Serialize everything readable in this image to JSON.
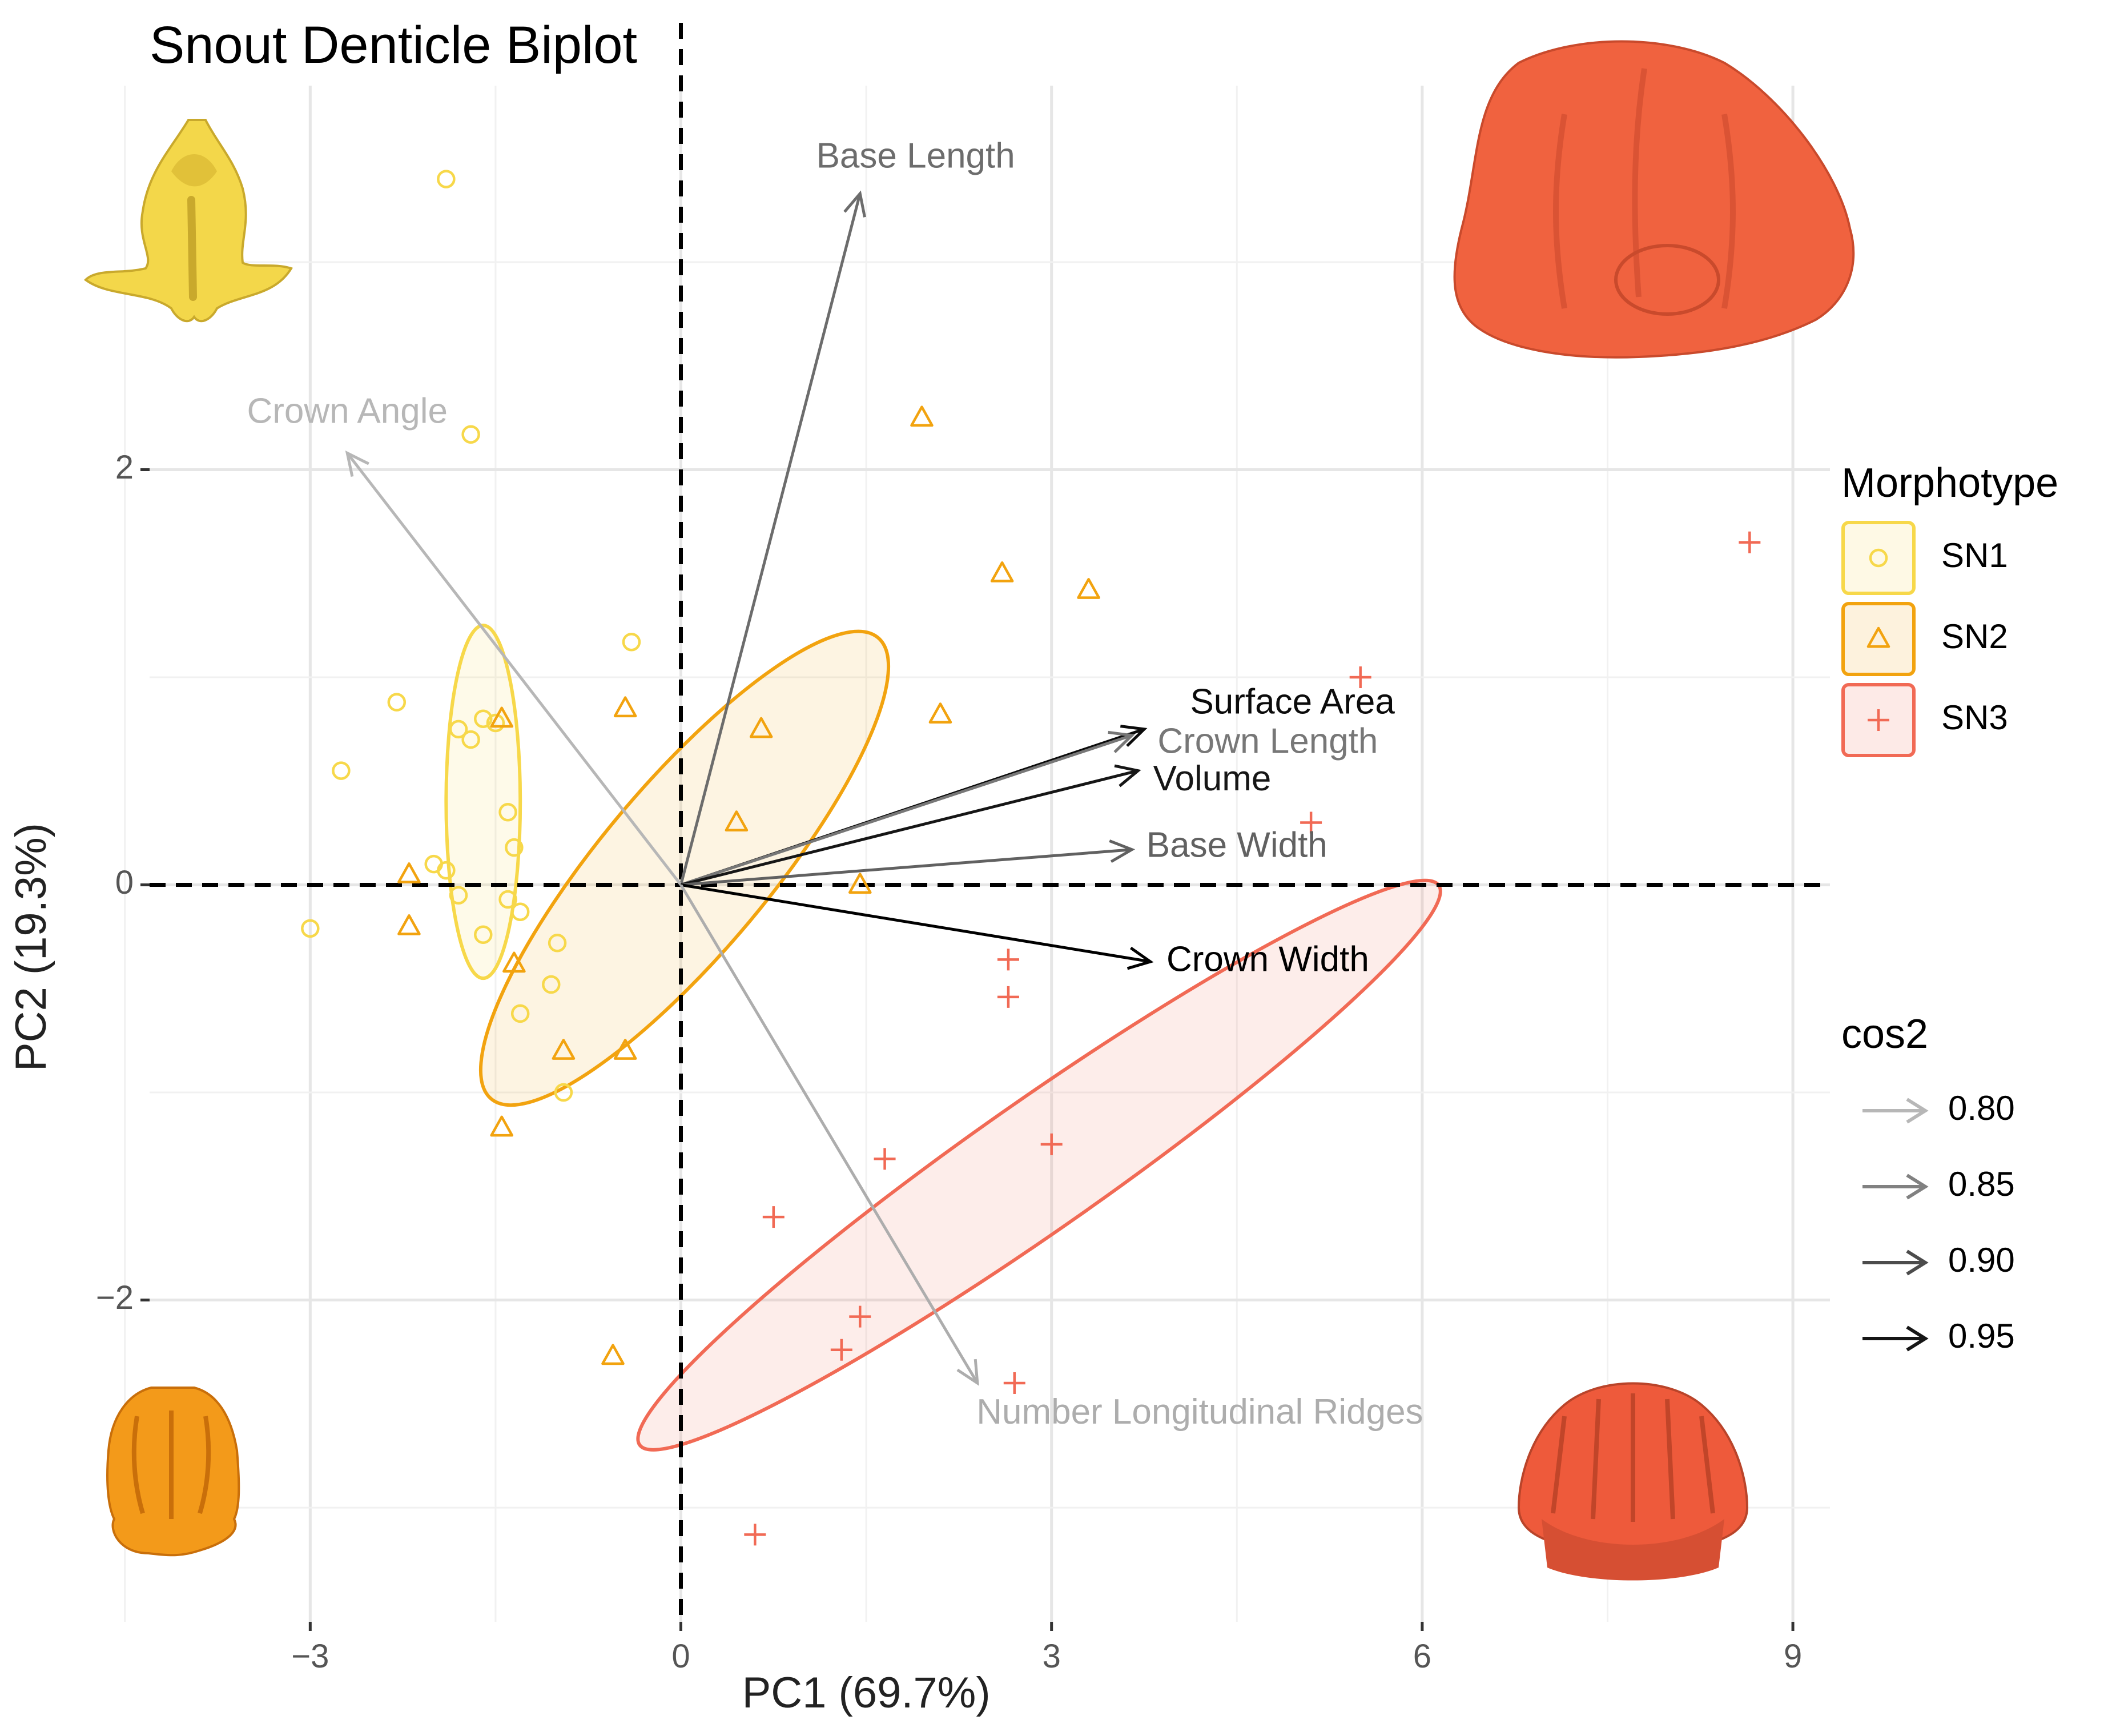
{
  "chart_data": {
    "type": "scatter",
    "title": "Snout Denticle Biplot",
    "xlabel": "PC1 (69.7%)",
    "ylabel": "PC2 (19.3%)",
    "xlim": [
      -4.3,
      9.3
    ],
    "ylim": [
      -3.55,
      3.85
    ],
    "xticks": [
      -3,
      0,
      3,
      6,
      9
    ],
    "yticks": [
      -2,
      0,
      2
    ],
    "xtick_labels": [
      "−3",
      "0",
      "3",
      "6",
      "9"
    ],
    "ytick_labels": [
      "−2",
      "0",
      "2"
    ],
    "grid": true,
    "legend": {
      "title": "Morphotype",
      "position": "right",
      "entries": [
        {
          "label": "SN1",
          "marker": "circle",
          "color": "#F7D84A"
        },
        {
          "label": "SN2",
          "marker": "triangle",
          "color": "#F2A30F"
        },
        {
          "label": "SN3",
          "marker": "plus",
          "color": "#F16A55"
        }
      ]
    },
    "cos2_legend": {
      "title": "cos2",
      "entries": [
        {
          "label": "0.80",
          "value": 0.8
        },
        {
          "label": "0.85",
          "value": 0.85
        },
        {
          "label": "0.90",
          "value": 0.9
        },
        {
          "label": "0.95",
          "value": 0.95
        }
      ]
    },
    "series": [
      {
        "name": "SN1",
        "marker": "circle",
        "color": "#F7D84A",
        "points": [
          [
            -1.9,
            3.4
          ],
          [
            -1.7,
            2.17
          ],
          [
            -0.4,
            1.17
          ],
          [
            -2.3,
            0.88
          ],
          [
            -2.75,
            0.55
          ],
          [
            -1.6,
            0.8
          ],
          [
            -1.5,
            0.78
          ],
          [
            -1.8,
            0.75
          ],
          [
            -1.7,
            0.7
          ],
          [
            -1.4,
            0.35
          ],
          [
            -1.35,
            0.18
          ],
          [
            -2.0,
            0.1
          ],
          [
            -1.9,
            0.07
          ],
          [
            -1.8,
            -0.05
          ],
          [
            -1.4,
            -0.07
          ],
          [
            -1.3,
            -0.13
          ],
          [
            -1.6,
            -0.24
          ],
          [
            -3.0,
            -0.21
          ],
          [
            -1.0,
            -0.28
          ],
          [
            -1.05,
            -0.48
          ],
          [
            -1.3,
            -0.62
          ],
          [
            -0.95,
            -1.0
          ]
        ]
      },
      {
        "name": "SN2",
        "marker": "triangle",
        "color": "#F2A30F",
        "points": [
          [
            1.95,
            2.25
          ],
          [
            2.6,
            1.5
          ],
          [
            3.3,
            1.42
          ],
          [
            -0.45,
            0.85
          ],
          [
            -1.45,
            0.8
          ],
          [
            0.65,
            0.75
          ],
          [
            2.1,
            0.82
          ],
          [
            0.45,
            0.3
          ],
          [
            1.45,
            0.0
          ],
          [
            -2.2,
            0.05
          ],
          [
            -2.2,
            -0.2
          ],
          [
            -1.35,
            -0.38
          ],
          [
            -0.95,
            -0.8
          ],
          [
            -0.45,
            -0.8
          ],
          [
            -1.45,
            -1.17
          ],
          [
            -0.55,
            -2.27
          ]
        ]
      },
      {
        "name": "SN3",
        "marker": "plus",
        "color": "#F16A55",
        "points": [
          [
            8.65,
            1.65
          ],
          [
            5.5,
            1.0
          ],
          [
            5.1,
            0.3
          ],
          [
            2.65,
            -0.36
          ],
          [
            2.65,
            -0.54
          ],
          [
            3.0,
            -1.25
          ],
          [
            1.65,
            -1.32
          ],
          [
            0.75,
            -1.6
          ],
          [
            1.45,
            -2.08
          ],
          [
            1.3,
            -2.24
          ],
          [
            2.7,
            -2.4
          ],
          [
            0.6,
            -3.13
          ]
        ]
      }
    ],
    "ellipses": [
      {
        "group": "SN1",
        "center": [
          -1.6,
          0.4
        ],
        "semi_axes": [
          0.3,
          0.85
        ],
        "angle_deg": 0,
        "color": "#F7D84A"
      },
      {
        "group": "SN2",
        "center": [
          0.03,
          0.08
        ],
        "semi_axes": [
          0.68,
          1.45
        ],
        "angle_deg": -40,
        "color": "#F2A30F"
      },
      {
        "group": "SN3",
        "center": [
          2.9,
          -1.35
        ],
        "semi_axes": [
          0.52,
          2.35
        ],
        "angle_deg": -55,
        "color": "#F16A55"
      }
    ],
    "variables": [
      {
        "name": "Base Length",
        "x": 1.45,
        "y": 3.33,
        "cos2": 0.87,
        "label_x": 1.9,
        "label_y": 3.5
      },
      {
        "name": "Crown Angle",
        "x": -2.7,
        "y": 2.08,
        "cos2": 0.8,
        "label_x": -2.7,
        "label_y": 2.27
      },
      {
        "name": "Surface Area",
        "x": 3.75,
        "y": 0.75,
        "cos2": 0.96,
        "label_x": 4.95,
        "label_y": 0.87
      },
      {
        "name": "Crown Length",
        "x": 3.65,
        "y": 0.72,
        "cos2": 0.86,
        "label_x": 4.75,
        "label_y": 0.68
      },
      {
        "name": "Volume",
        "x": 3.7,
        "y": 0.55,
        "cos2": 0.95,
        "label_x": 4.3,
        "label_y": 0.5
      },
      {
        "name": "Base Width",
        "x": 3.65,
        "y": 0.17,
        "cos2": 0.88,
        "label_x": 4.5,
        "label_y": 0.18
      },
      {
        "name": "Crown Width",
        "x": 3.8,
        "y": -0.37,
        "cos2": 0.97,
        "label_x": 4.75,
        "label_y": -0.37
      },
      {
        "name": "Number Longitudinal Ridges",
        "x": 2.4,
        "y": -2.4,
        "cos2": 0.81,
        "label_x": 4.2,
        "label_y": -2.55
      }
    ]
  }
}
